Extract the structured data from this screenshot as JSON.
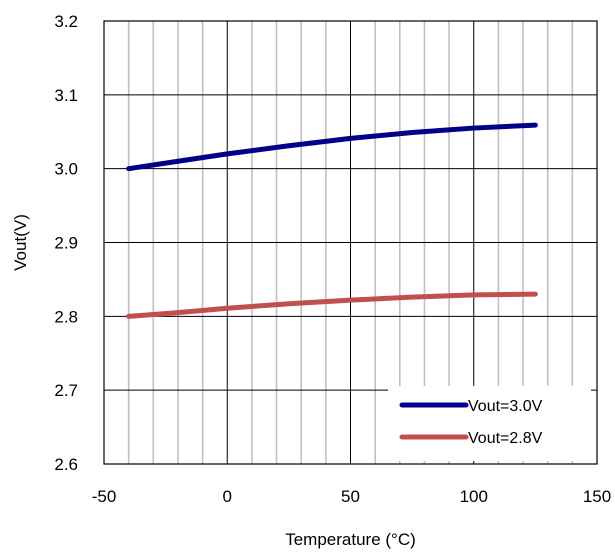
{
  "chart_data": {
    "type": "line",
    "title": "",
    "xlabel": "Temperature (°C)",
    "ylabel": "Vout(V)",
    "xlim": [
      -50,
      150
    ],
    "ylim": [
      2.6,
      3.2
    ],
    "x_ticks": [
      -50,
      0,
      50,
      100,
      150
    ],
    "y_ticks": [
      2.6,
      2.7,
      2.8,
      2.9,
      3.0,
      3.1,
      3.2
    ],
    "x_tick_labels": [
      "-50",
      "0",
      "50",
      "100",
      "150"
    ],
    "y_tick_labels": [
      "2.6",
      "2.7",
      "2.8",
      "2.9",
      "3.0",
      "3.1",
      "3.2"
    ],
    "grid": true,
    "legend_position": "bottom-right",
    "series": [
      {
        "name": "Vout=3.0V",
        "color": "#00008B",
        "x": [
          -40,
          -20,
          0,
          25,
          50,
          75,
          100,
          125
        ],
        "y": [
          3.0,
          3.01,
          3.02,
          3.031,
          3.041,
          3.049,
          3.055,
          3.059
        ]
      },
      {
        "name": "Vout=2.8V",
        "color": "#C0504D",
        "x": [
          -40,
          -20,
          0,
          25,
          50,
          75,
          100,
          125
        ],
        "y": [
          2.8,
          2.805,
          2.811,
          2.817,
          2.822,
          2.826,
          2.829,
          2.83
        ]
      }
    ]
  }
}
